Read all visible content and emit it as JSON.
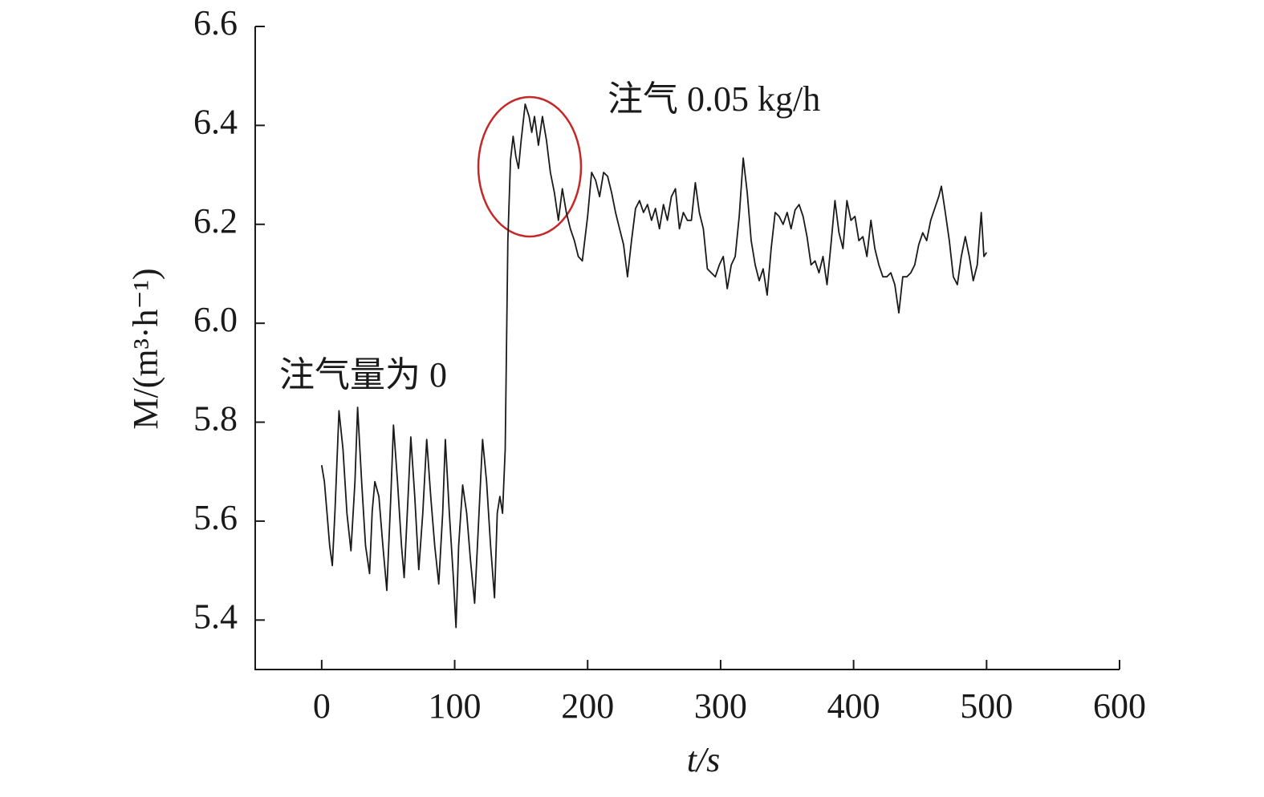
{
  "chart_data": {
    "type": "line",
    "x_label": "t/s",
    "y_label": "M/(m³·h⁻¹)",
    "annotations": [
      "注气量为 0",
      "注气 0.05 kg/h"
    ],
    "x": [
      0,
      2,
      4,
      6,
      8,
      10,
      13,
      16,
      19,
      22,
      25,
      27,
      30,
      33,
      36,
      38,
      40,
      43,
      46,
      49,
      52,
      54,
      57,
      60,
      62,
      65,
      67,
      70,
      73,
      76,
      79,
      82,
      85,
      88,
      91,
      93,
      96,
      99,
      101,
      103,
      106,
      109,
      112,
      115,
      118,
      121,
      124,
      127,
      130,
      132,
      134,
      136,
      138,
      140,
      142,
      144,
      146,
      148,
      150,
      153,
      156,
      158,
      160,
      163,
      166,
      169,
      172,
      175,
      178,
      181,
      184,
      187,
      190,
      193,
      196,
      200,
      203,
      206,
      209,
      212,
      215,
      218,
      221,
      224,
      227,
      230,
      233,
      236,
      239,
      242,
      245,
      248,
      251,
      254,
      257,
      260,
      263,
      266,
      269,
      272,
      275,
      278,
      281,
      284,
      287,
      290,
      293,
      296,
      299,
      302,
      305,
      308,
      311,
      314,
      317,
      320,
      323,
      326,
      329,
      332,
      335,
      338,
      341,
      344,
      347,
      350,
      353,
      356,
      359,
      362,
      365,
      368,
      371,
      374,
      377,
      380,
      383,
      386,
      389,
      392,
      395,
      398,
      401,
      404,
      407,
      410,
      413,
      416,
      419,
      422,
      425,
      428,
      431,
      434,
      437,
      440,
      443,
      446,
      449,
      452,
      455,
      458,
      461,
      464,
      466,
      469,
      472,
      475,
      478,
      481,
      484,
      487,
      490,
      493,
      496,
      498,
      500
    ],
    "series": [
      {
        "color": "#1a1a1a",
        "values": [
          5.713,
          5.68,
          5.616,
          5.55,
          5.51,
          5.62,
          5.823,
          5.745,
          5.616,
          5.54,
          5.68,
          5.83,
          5.68,
          5.55,
          5.494,
          5.62,
          5.68,
          5.65,
          5.55,
          5.46,
          5.65,
          5.794,
          5.68,
          5.55,
          5.486,
          5.65,
          5.77,
          5.65,
          5.502,
          5.616,
          5.765,
          5.65,
          5.55,
          5.473,
          5.616,
          5.765,
          5.616,
          5.486,
          5.385,
          5.55,
          5.673,
          5.616,
          5.518,
          5.434,
          5.6,
          5.765,
          5.68,
          5.55,
          5.445,
          5.616,
          5.65,
          5.616,
          5.745,
          6.167,
          6.33,
          6.378,
          6.337,
          6.313,
          6.37,
          6.443,
          6.418,
          6.386,
          6.418,
          6.36,
          6.418,
          6.37,
          6.305,
          6.264,
          6.208,
          6.272,
          6.224,
          6.191,
          6.167,
          6.135,
          6.126,
          6.216,
          6.305,
          6.289,
          6.256,
          6.305,
          6.297,
          6.264,
          6.224,
          6.191,
          6.159,
          6.094,
          6.167,
          6.232,
          6.248,
          6.224,
          6.24,
          6.208,
          6.232,
          6.191,
          6.24,
          6.208,
          6.256,
          6.272,
          6.191,
          6.224,
          6.208,
          6.208,
          6.284,
          6.224,
          6.191,
          6.11,
          6.102,
          6.094,
          6.118,
          6.135,
          6.07,
          6.118,
          6.135,
          6.216,
          6.334,
          6.264,
          6.167,
          6.118,
          6.086,
          6.11,
          6.057,
          6.151,
          6.224,
          6.216,
          6.2,
          6.224,
          6.191,
          6.229,
          6.24,
          6.216,
          6.175,
          6.118,
          6.126,
          6.102,
          6.135,
          6.078,
          6.159,
          6.248,
          6.183,
          6.151,
          6.248,
          6.208,
          6.216,
          6.167,
          6.175,
          6.135,
          6.208,
          6.151,
          6.118,
          6.094,
          6.094,
          6.102,
          6.078,
          6.021,
          6.094,
          6.094,
          6.102,
          6.118,
          6.159,
          6.183,
          6.167,
          6.208,
          6.232,
          6.256,
          6.277,
          6.224,
          6.167,
          6.094,
          6.078,
          6.135,
          6.175,
          6.135,
          6.086,
          6.118,
          6.224,
          6.135,
          6.143
        ]
      }
    ],
    "xlim": [
      -50,
      600
    ],
    "xticks": [
      0,
      100,
      200,
      300,
      400,
      500,
      600
    ],
    "ylim": [
      5.3,
      6.6
    ],
    "yticks": [
      5.4,
      5.6,
      5.8,
      {
        "value": 6,
        "label": "6.0"
      },
      6.2,
      6.4,
      6.6
    ]
  }
}
